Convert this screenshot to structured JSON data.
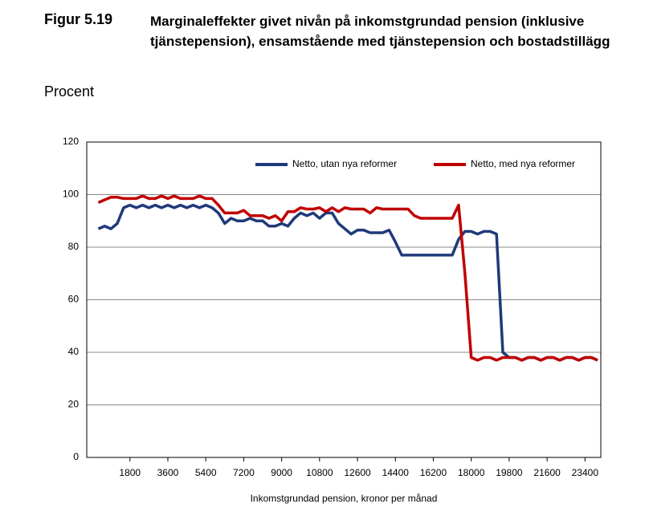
{
  "chart_data": {
    "type": "line",
    "figure_label": "Figur 5.19",
    "title": "Marginaleffekter givet nivån på inkomstgrundad pension (inklusive tjänstepension), ensamstående med tjänstepension och bostadstillägg",
    "y_label": "Procent",
    "x_label": "Inkomstgrundad pension, kronor per månad",
    "x": [
      300,
      600,
      900,
      1200,
      1500,
      1800,
      2100,
      2400,
      2700,
      3000,
      3300,
      3600,
      3900,
      4200,
      4500,
      4800,
      5100,
      5400,
      5700,
      6000,
      6300,
      6600,
      6900,
      7200,
      7500,
      7800,
      8100,
      8400,
      8700,
      9000,
      9300,
      9600,
      9900,
      10200,
      10500,
      10800,
      11100,
      11400,
      11700,
      12000,
      12300,
      12600,
      12900,
      13200,
      13500,
      13800,
      14100,
      14400,
      14700,
      15000,
      15300,
      15600,
      15900,
      16200,
      16500,
      16800,
      17100,
      17400,
      17700,
      18000,
      18300,
      18600,
      18900,
      19200,
      19500,
      19800,
      20100,
      20400,
      20700,
      21000,
      21300,
      21600,
      21900,
      22200,
      22500,
      22800,
      23100,
      23400,
      23700,
      24000
    ],
    "series": [
      {
        "name": "Netto, utan nya reformer",
        "color": "#1f3a7a",
        "values": [
          87,
          88,
          87,
          89,
          95,
          96,
          95,
          96,
          95,
          96,
          95,
          96,
          95,
          96,
          95,
          96,
          95,
          96,
          95,
          93,
          89,
          91,
          90,
          90,
          91,
          90,
          90,
          88,
          88,
          89,
          88,
          91,
          93,
          92,
          93,
          91,
          93,
          93,
          89,
          87,
          85,
          86.5,
          86.5,
          85.5,
          85.5,
          85.5,
          86.5,
          82,
          77,
          77,
          77,
          77,
          77,
          77,
          77,
          77,
          77,
          83,
          86,
          86,
          85,
          86,
          86,
          85,
          40,
          38,
          38,
          37,
          38,
          38,
          37,
          38,
          38,
          37,
          38,
          38,
          37,
          38,
          38,
          37
        ]
      },
      {
        "name": "Netto, med nya reformer",
        "color": "#c00000",
        "values": [
          97,
          98,
          99,
          99,
          98.5,
          98.5,
          98.5,
          99.5,
          98.5,
          98.5,
          99.5,
          98.5,
          99.5,
          98.5,
          98.5,
          98.5,
          99.5,
          98.5,
          98.5,
          96,
          93,
          93,
          93,
          94,
          92,
          92,
          92,
          91,
          92,
          90,
          93.5,
          93.5,
          95,
          94.5,
          94.5,
          95,
          93.5,
          95,
          93.5,
          95,
          94.5,
          94.5,
          94.5,
          93,
          95,
          94.5,
          94.5,
          94.5,
          94.5,
          94.5,
          92,
          91,
          91,
          91,
          91,
          91,
          91,
          96,
          70,
          38,
          37,
          38,
          38,
          37,
          38,
          38,
          38,
          37,
          38,
          38,
          37,
          38,
          38,
          37,
          38,
          38,
          37,
          38,
          38,
          37
        ]
      }
    ],
    "xlim": [
      -250,
      24150
    ],
    "ylim": [
      0,
      120
    ],
    "xticks": [
      1800,
      3600,
      5400,
      7200,
      9000,
      10800,
      12600,
      14400,
      16200,
      18000,
      19800,
      21600,
      23400
    ],
    "yticks": [
      0,
      20,
      40,
      60,
      80,
      100,
      120
    ],
    "grid": true,
    "legend": "top"
  }
}
